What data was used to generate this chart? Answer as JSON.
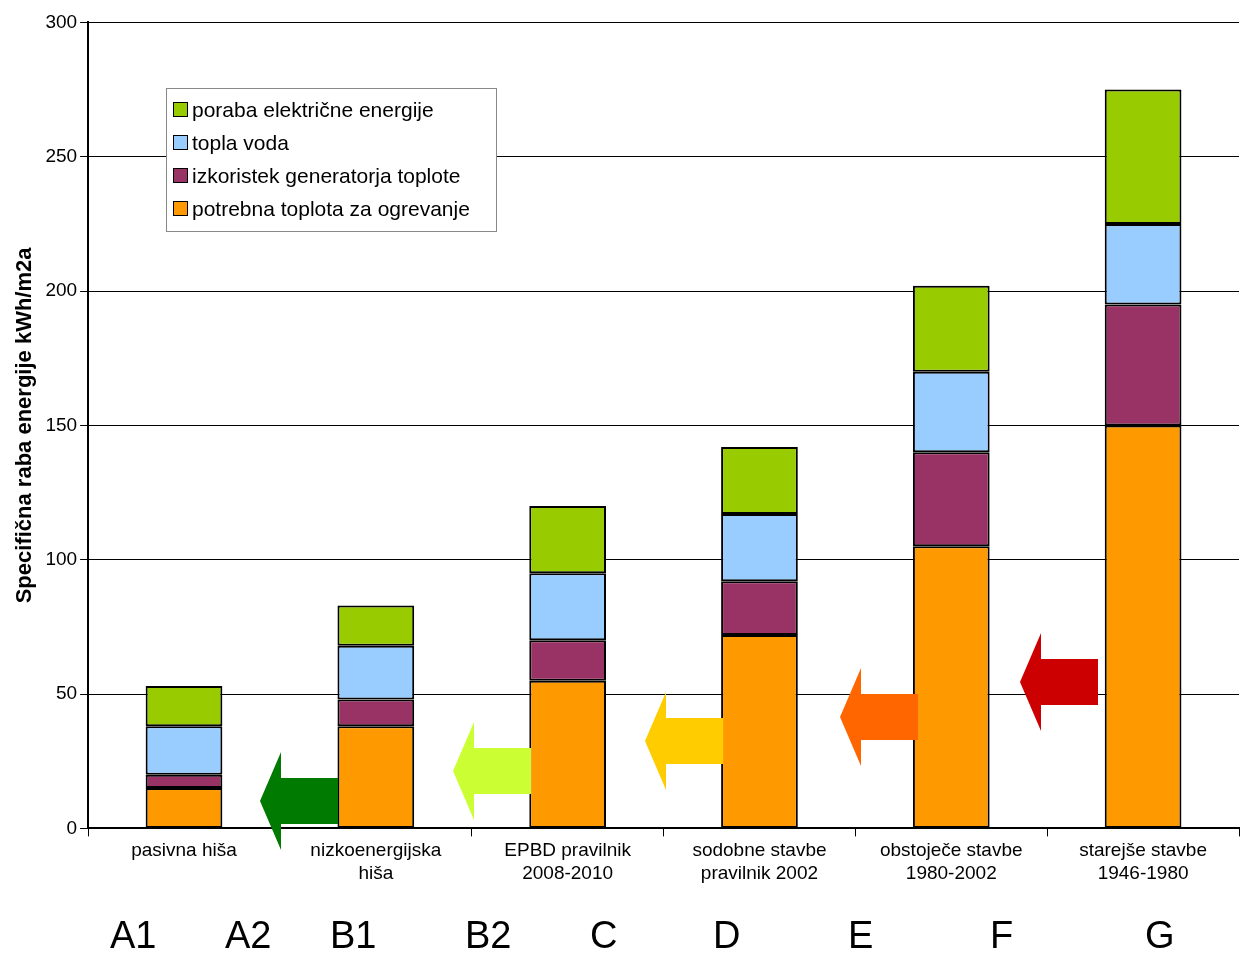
{
  "chart_data": {
    "type": "bar",
    "ylabel": "Specifična raba energije kWh/m2a",
    "categories": [
      "pasivna hiša",
      "nizkoenergijska hiša",
      "EPBD pravilnik 2008-2010",
      "sodobne stavbe pravilnik 2002",
      "obstoječe stavbe 1980-2002",
      "starejše stavbe 1946-1980"
    ],
    "stacked": true,
    "ylim": [
      0,
      300
    ],
    "yticks": [
      0,
      50,
      100,
      150,
      200,
      250,
      300
    ],
    "grid": "y",
    "legend": "top left",
    "series": [
      {
        "name": "potrebna toplota za ogrevanje",
        "color": "#ff9900",
        "values": [
          15,
          38,
          55,
          72,
          105,
          150
        ]
      },
      {
        "name": "izkoristek generatorja toplote",
        "color": "#993366",
        "values": [
          5,
          10,
          15,
          20,
          35,
          45
        ]
      },
      {
        "name": "topla voda",
        "color": "#99ccff",
        "values": [
          18,
          20,
          25,
          25,
          30,
          30
        ]
      },
      {
        "name": "poraba električne energije",
        "color": "#99cc00",
        "values": [
          15,
          15,
          25,
          25,
          32,
          50
        ]
      }
    ],
    "annotations": [
      "A1",
      "A2",
      "B1",
      "B2",
      "C",
      "D",
      "E",
      "F",
      "G"
    ]
  }
}
